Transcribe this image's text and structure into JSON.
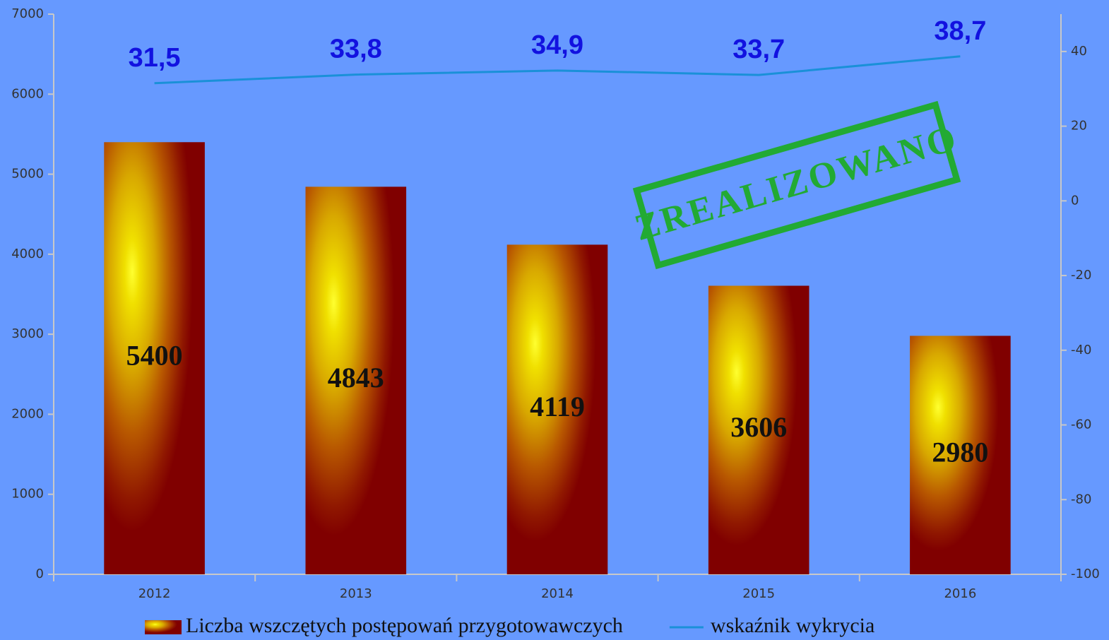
{
  "chart_data": {
    "type": "bar_line",
    "categories": [
      "2012",
      "2013",
      "2014",
      "2015",
      "2016"
    ],
    "series": [
      {
        "name": "Liczba wszczętych postępowań przygotowawczych",
        "type": "bar",
        "color": "#800000",
        "values": [
          5400,
          4843,
          4119,
          3606,
          2980
        ]
      },
      {
        "name": "wskaźnik wykrycia",
        "type": "line",
        "axis": "y2",
        "color": "#1a90d8",
        "values": [
          31.5,
          33.8,
          34.9,
          33.7,
          38.7
        ],
        "value_labels": [
          "31,5",
          "33,8",
          "34,9",
          "33,7",
          "38,7"
        ]
      }
    ],
    "ylim": [
      0,
      7000
    ],
    "yticks": [
      0,
      1000,
      2000,
      3000,
      4000,
      5000,
      6000,
      7000
    ],
    "y2lim": [
      -100,
      50
    ],
    "y2ticks": [
      -100,
      -80,
      -60,
      -40,
      -20,
      0,
      20,
      40
    ],
    "legend": "bottom",
    "annotation": "ZREALIZOWANO"
  }
}
